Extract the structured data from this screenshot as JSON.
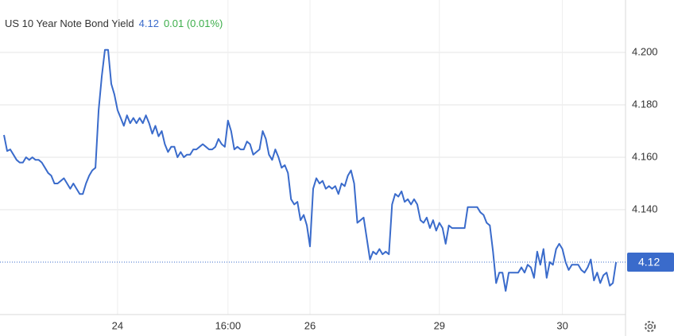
{
  "chart_data": {
    "type": "line",
    "title": "US 10 Year Note Bond Yield",
    "price": "4.12",
    "change": "0.01 (0.01%)",
    "color": "#3a6bcb",
    "last_value": 4.12,
    "xlim": [
      0,
      197
    ],
    "xticks": [
      {
        "value": 36,
        "label": "24"
      },
      {
        "value": 71,
        "label": "16:00"
      },
      {
        "value": 97,
        "label": "26"
      },
      {
        "value": 138,
        "label": "29"
      },
      {
        "value": 177,
        "label": "30"
      }
    ],
    "ylim": [
      4.1,
      4.22
    ],
    "yticks": [
      {
        "value": 4.14,
        "label": "4.140"
      },
      {
        "value": 4.16,
        "label": "4.160"
      },
      {
        "value": 4.18,
        "label": "4.180"
      },
      {
        "value": 4.2,
        "label": "4.200"
      }
    ],
    "grid": true,
    "values": [
      4.1685,
      4.1624,
      4.163,
      4.161,
      4.159,
      4.158,
      4.158,
      4.16,
      4.159,
      4.16,
      4.159,
      4.159,
      4.158,
      4.156,
      4.154,
      4.153,
      4.15,
      4.15,
      4.151,
      4.152,
      4.15,
      4.148,
      4.15,
      4.148,
      4.146,
      4.146,
      4.15,
      4.153,
      4.155,
      4.156,
      4.178,
      4.191,
      4.201,
      4.201,
      4.188,
      4.184,
      4.178,
      4.175,
      4.172,
      4.176,
      4.173,
      4.175,
      4.173,
      4.175,
      4.173,
      4.176,
      4.173,
      4.169,
      4.172,
      4.168,
      4.17,
      4.165,
      4.162,
      4.164,
      4.164,
      4.16,
      4.162,
      4.16,
      4.161,
      4.161,
      4.163,
      4.163,
      4.164,
      4.165,
      4.164,
      4.163,
      4.163,
      4.164,
      4.167,
      4.165,
      4.164,
      4.174,
      4.17,
      4.163,
      4.164,
      4.163,
      4.163,
      4.166,
      4.165,
      4.161,
      4.162,
      4.163,
      4.17,
      4.167,
      4.161,
      4.159,
      4.163,
      4.16,
      4.156,
      4.157,
      4.154,
      4.144,
      4.142,
      4.143,
      4.136,
      4.138,
      4.134,
      4.126,
      4.148,
      4.152,
      4.15,
      4.151,
      4.148,
      4.149,
      4.148,
      4.149,
      4.146,
      4.15,
      4.149,
      4.153,
      4.155,
      4.15,
      4.135,
      4.136,
      4.137,
      4.129,
      4.121,
      4.124,
      4.123,
      4.125,
      4.123,
      4.124,
      4.123,
      4.142,
      4.146,
      4.145,
      4.147,
      4.143,
      4.144,
      4.142,
      4.144,
      4.142,
      4.136,
      4.135,
      4.137,
      4.133,
      4.136,
      4.132,
      4.135,
      4.133,
      4.127,
      4.134,
      4.133,
      4.133,
      4.133,
      4.133,
      4.133,
      4.141,
      4.141,
      4.141,
      4.141,
      4.139,
      4.138,
      4.135,
      4.134,
      4.124,
      4.112,
      4.116,
      4.116,
      4.109,
      4.116,
      4.116,
      4.116,
      4.116,
      4.118,
      4.116,
      4.119,
      4.118,
      4.114,
      4.124,
      4.119,
      4.125,
      4.114,
      4.12,
      4.119,
      4.125,
      4.127,
      4.125,
      4.12,
      4.117,
      4.119,
      4.119,
      4.119,
      4.117,
      4.116,
      4.118,
      4.121,
      4.113,
      4.116,
      4.112,
      4.115,
      4.116,
      4.111,
      4.112,
      4.12
    ]
  }
}
